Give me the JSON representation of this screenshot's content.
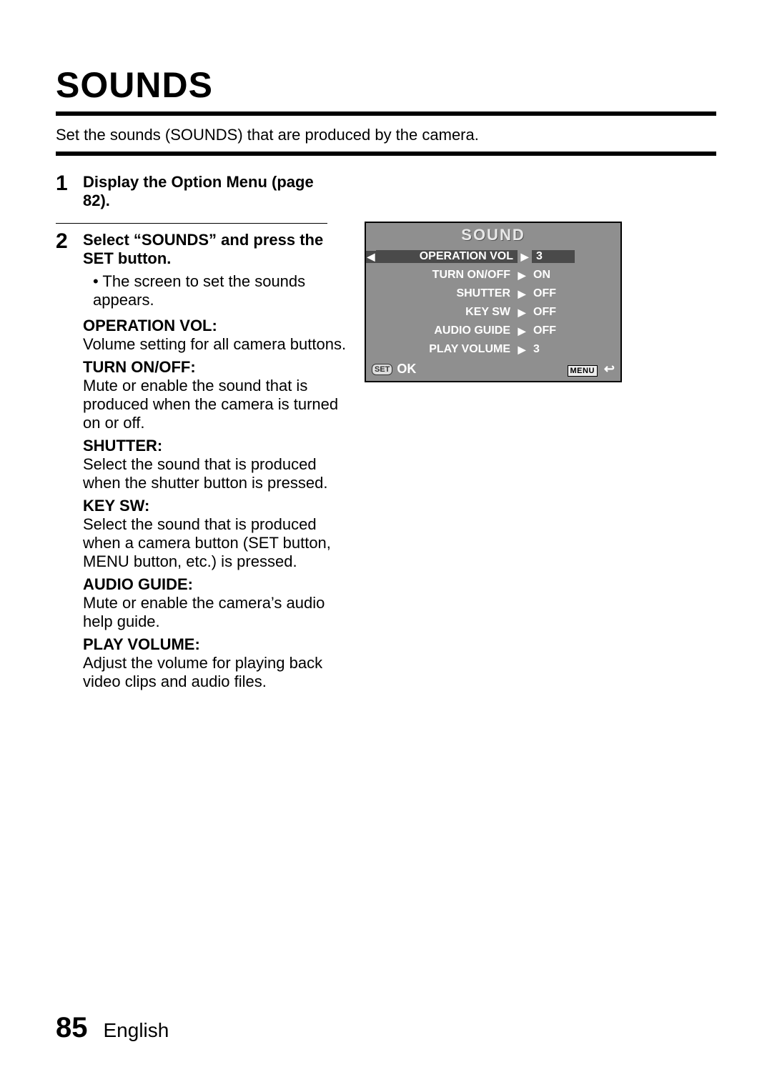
{
  "title": "SOUNDS",
  "intro": "Set the sounds (SOUNDS) that are produced by the camera.",
  "step1": {
    "num": "1",
    "title": "Display the Option Menu (page 82)."
  },
  "step2": {
    "num": "2",
    "title": "Select “SOUNDS” and press the SET button.",
    "bullet": "The screen to set the sounds appears.",
    "defs": [
      {
        "label": "OPERATION VOL:",
        "text": "Volume setting for all camera buttons."
      },
      {
        "label": "TURN ON/OFF:",
        "text": "Mute or enable the sound that is produced when the camera is turned on or off."
      },
      {
        "label": "SHUTTER:",
        "text": "Select the sound that is produced when the shutter button is pressed."
      },
      {
        "label": "KEY SW:",
        "text": "Select the sound that is produced when a camera button (SET button, MENU button, etc.) is pressed."
      },
      {
        "label": "AUDIO GUIDE:",
        "text": "Mute or enable the camera’s audio help guide."
      },
      {
        "label": "PLAY VOLUME:",
        "text": "Adjust the volume for playing back video clips and audio files."
      }
    ]
  },
  "lcd": {
    "title": "SOUND",
    "rows": [
      {
        "label": "OPERATION VOL",
        "value": "3",
        "selected": true
      },
      {
        "label": "TURN ON/OFF",
        "value": "ON",
        "selected": false
      },
      {
        "label": "SHUTTER",
        "value": "OFF",
        "selected": false
      },
      {
        "label": "KEY SW",
        "value": "OFF",
        "selected": false
      },
      {
        "label": "AUDIO GUIDE",
        "value": "OFF",
        "selected": false
      },
      {
        "label": "PLAY VOLUME",
        "value": "3",
        "selected": false
      }
    ],
    "set_label": "SET",
    "ok_label": "OK",
    "menu_label": "MENU"
  },
  "footer": {
    "page": "85",
    "language": "English"
  },
  "glyphs": {
    "left": "◀",
    "right": "▶",
    "bullet": "•",
    "return": "↩"
  }
}
